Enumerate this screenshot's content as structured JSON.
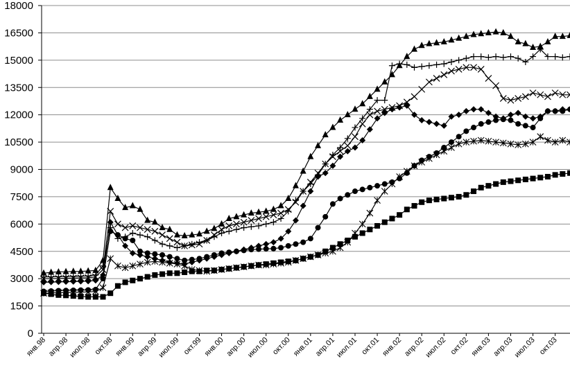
{
  "chart_data": {
    "type": "line",
    "title": "",
    "xlabel": "",
    "ylabel": "",
    "ylim": [
      0,
      18000
    ],
    "yticks": [
      0,
      1500,
      3000,
      4500,
      6000,
      7500,
      9000,
      10500,
      12000,
      13500,
      15000,
      16500,
      18000
    ],
    "ytick_labels": [
      "0",
      "1500",
      "3000",
      "4500",
      "6000",
      "7500",
      "9000",
      "10500",
      "12000",
      "13500",
      "15000",
      "16500",
      "18000"
    ],
    "grid": true,
    "legend": "none",
    "x_tick_labels": [
      "янв.98",
      "апр.98",
      "июл.98",
      "окт.98",
      "янв.99",
      "апр.99",
      "июл.99",
      "окт.99",
      "янв.00",
      "апр.00",
      "июл.00",
      "окт.00",
      "янв.01",
      "апр.01",
      "июл.01",
      "окт.01",
      "янв.02",
      "апр.02",
      "июл.02",
      "окт.02",
      "янв.03",
      "апр.03",
      "июл.03",
      "окт.03"
    ],
    "n_points": 72,
    "series": [
      {
        "marker": "triangle",
        "color": "#000000",
        "values": [
          3300,
          3350,
          3370,
          3380,
          3400,
          3400,
          3420,
          3450,
          4000,
          8000,
          7400,
          6900,
          7000,
          6800,
          6200,
          6100,
          5800,
          5700,
          5400,
          5350,
          5400,
          5450,
          5600,
          5750,
          6000,
          6300,
          6400,
          6500,
          6600,
          6650,
          6700,
          6800,
          7000,
          7400,
          8100,
          8900,
          9700,
          10300,
          10900,
          11300,
          11700,
          12000,
          12300,
          12600,
          13000,
          13400,
          13800,
          14200,
          14700,
          15200,
          15600,
          15800,
          15900,
          15950,
          16000,
          16100,
          16200,
          16300,
          16400,
          16450,
          16500,
          16550,
          16500,
          16300,
          16000,
          15900,
          15700,
          15750,
          16000,
          16300,
          16300,
          16350
        ]
      },
      {
        "marker": "plus",
        "color": "#000000",
        "values": [
          3100,
          3100,
          3110,
          3120,
          3130,
          3140,
          3150,
          3200,
          3700,
          5800,
          5200,
          5300,
          5500,
          5400,
          5300,
          5100,
          4900,
          4800,
          4700,
          4800,
          4900,
          5000,
          5100,
          5300,
          5500,
          5600,
          5700,
          5800,
          5850,
          5900,
          6000,
          6100,
          6300,
          6700,
          7300,
          7800,
          8200,
          8700,
          9300,
          9800,
          10200,
          10700,
          11300,
          11800,
          12300,
          12800,
          12800,
          14700,
          14800,
          14750,
          14600,
          14650,
          14700,
          14750,
          14800,
          14900,
          15000,
          15100,
          15200,
          15200,
          15150,
          15200,
          15150,
          15200,
          15100,
          14900,
          15200,
          15600,
          15200,
          15200,
          15150,
          15200
        ]
      },
      {
        "marker": "x",
        "color": "#000000",
        "values": [
          3000,
          3000,
          3010,
          3020,
          3030,
          3040,
          3050,
          3100,
          3500,
          6700,
          6000,
          5800,
          5900,
          5800,
          5700,
          5600,
          5400,
          5200,
          5000,
          4800,
          4850,
          4900,
          5100,
          5400,
          5700,
          5900,
          6000,
          6100,
          6200,
          6300,
          6400,
          6500,
          6600,
          6800,
          7200,
          7800,
          8300,
          8800,
          9300,
          9700,
          10000,
          10300,
          10800,
          11500,
          12000,
          12200,
          12300,
          12400,
          12500,
          12700,
          13000,
          13400,
          13800,
          14000,
          14200,
          14400,
          14500,
          14600,
          14600,
          14500,
          14000,
          13600,
          12900,
          12800,
          12900,
          13000,
          13200,
          13100,
          13000,
          13200,
          13100,
          13100
        ]
      },
      {
        "marker": "diamond",
        "color": "#000000",
        "values": [
          2800,
          2810,
          2820,
          2830,
          2840,
          2850,
          2860,
          2900,
          3200,
          6100,
          5400,
          4800,
          4400,
          4300,
          4200,
          4100,
          4000,
          3900,
          3850,
          3800,
          3900,
          4000,
          4100,
          4200,
          4300,
          4400,
          4500,
          4600,
          4700,
          4800,
          4900,
          5000,
          5200,
          5600,
          6200,
          7000,
          7800,
          8600,
          8800,
          9200,
          9700,
          10000,
          10200,
          10600,
          11200,
          11800,
          12100,
          12300,
          12400,
          12500,
          12000,
          11700,
          11600,
          11500,
          11400,
          11900,
          12000,
          12200,
          12300,
          12300,
          12100,
          11900,
          11800,
          12000,
          12100,
          11900,
          11800,
          11900,
          12200,
          12200,
          12300,
          12300
        ]
      },
      {
        "marker": "circle",
        "color": "#000000",
        "values": [
          2300,
          2320,
          2340,
          2350,
          2360,
          2370,
          2380,
          2400,
          3000,
          5600,
          5400,
          5200,
          5100,
          4500,
          4400,
          4350,
          4300,
          4200,
          4100,
          4000,
          4050,
          4100,
          4200,
          4300,
          4400,
          4450,
          4500,
          4550,
          4600,
          4620,
          4640,
          4650,
          4700,
          4800,
          4900,
          5000,
          5200,
          5800,
          6400,
          7100,
          7400,
          7600,
          7800,
          7900,
          8000,
          8100,
          8200,
          8300,
          8500,
          8800,
          9200,
          9500,
          9700,
          9900,
          10200,
          10500,
          10800,
          11100,
          11300,
          11500,
          11600,
          11700,
          11750,
          11700,
          11500,
          11400,
          11300,
          11800,
          12200,
          12200,
          12200,
          12300
        ]
      },
      {
        "marker": "asterisk",
        "color": "#000000",
        "values": [
          2200,
          2220,
          2230,
          2240,
          2250,
          2260,
          2270,
          2300,
          2500,
          4100,
          3700,
          3600,
          3700,
          3800,
          3900,
          3950,
          3900,
          3850,
          3800,
          3700,
          3500,
          3450,
          3400,
          3450,
          3500,
          3550,
          3600,
          3650,
          3700,
          3750,
          3750,
          3800,
          3850,
          3900,
          4000,
          4100,
          4200,
          4300,
          4400,
          4500,
          4700,
          5000,
          5500,
          6000,
          6600,
          7300,
          7800,
          8200,
          8600,
          8900,
          9200,
          9400,
          9600,
          9800,
          10000,
          10200,
          10400,
          10500,
          10550,
          10600,
          10550,
          10500,
          10450,
          10400,
          10350,
          10400,
          10500,
          10800,
          10600,
          10500,
          10600,
          10500
        ]
      },
      {
        "marker": "square",
        "color": "#000000",
        "values": [
          2200,
          2150,
          2100,
          2080,
          2050,
          2020,
          2000,
          2000,
          2000,
          2200,
          2600,
          2800,
          2900,
          3000,
          3100,
          3200,
          3250,
          3300,
          3300,
          3350,
          3400,
          3400,
          3450,
          3450,
          3500,
          3550,
          3600,
          3650,
          3700,
          3750,
          3800,
          3850,
          3900,
          3950,
          4000,
          4100,
          4200,
          4300,
          4500,
          4700,
          4900,
          5100,
          5300,
          5500,
          5700,
          5900,
          6100,
          6300,
          6500,
          6800,
          7000,
          7200,
          7300,
          7350,
          7400,
          7450,
          7500,
          7600,
          7800,
          8000,
          8100,
          8200,
          8300,
          8350,
          8400,
          8450,
          8500,
          8550,
          8600,
          8700,
          8750,
          8800
        ]
      }
    ]
  }
}
